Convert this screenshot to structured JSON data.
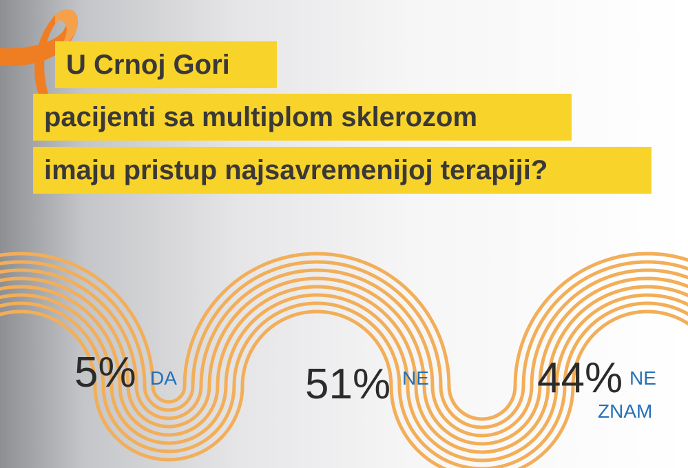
{
  "title": {
    "lines": [
      "U Crnoj Gori",
      "pacijenti sa multiplom sklerozom",
      "imaju pristup najsavremenijoj terapiji?"
    ]
  },
  "answers": [
    {
      "percent": "5%",
      "label": [
        "DA"
      ]
    },
    {
      "percent": "51%",
      "label": [
        "NE"
      ]
    },
    {
      "percent": "44%",
      "label": [
        "NE",
        "ZNAM"
      ]
    }
  ]
}
